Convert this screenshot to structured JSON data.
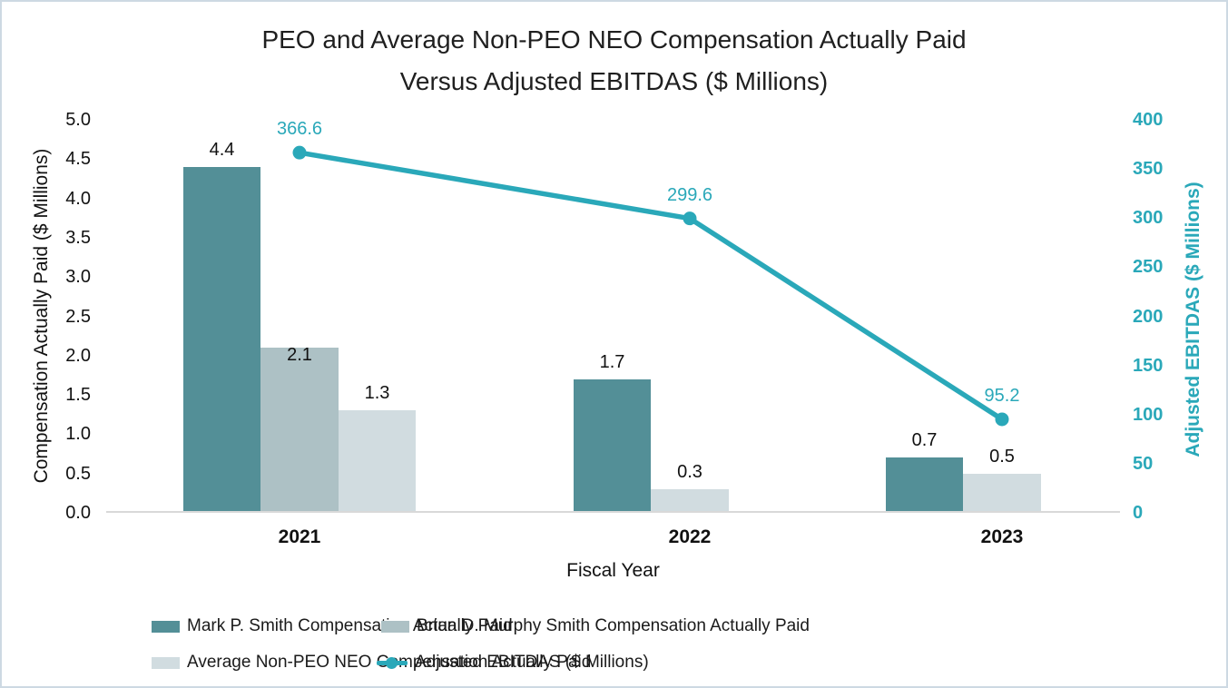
{
  "title": {
    "line1": "PEO and Average Non-PEO NEO Compensation Actually Paid",
    "line2": "Versus Adjusted EBITDAS ($ Millions)"
  },
  "colors": {
    "accent_teal": "#2aa8b9",
    "bar_dark_teal": "#538f97",
    "bar_gray_teal": "#adc1c5",
    "bar_light_gray": "#d1dce0",
    "axis_line": "#d9d9d9",
    "text": "#111111",
    "frame_border": "#cdd9e3"
  },
  "chart_data": {
    "type": "bar+line combo",
    "categories": [
      "2021",
      "2022",
      "2023"
    ],
    "bar_series": [
      {
        "name": "Mark P. Smith Compensation Actually Paid",
        "color_key": "bar_dark_teal",
        "values": [
          4.4,
          1.7,
          0.7
        ]
      },
      {
        "name": "Brian D. Murphy Smith Compensation Actually Paid",
        "color_key": "bar_gray_teal",
        "values": [
          2.1,
          null,
          null
        ],
        "value_label_inside": true
      },
      {
        "name": "Average Non-PEO NEO Compensation Actually Paid",
        "color_key": "bar_light_gray",
        "values": [
          1.3,
          0.3,
          0.5
        ]
      }
    ],
    "line_series": {
      "name": "Adjusted EBITDAS ($ Millions)",
      "color_key": "accent_teal",
      "values": [
        366.6,
        299.6,
        95.2
      ]
    },
    "left_axis": {
      "title": "Compensation Actually Paid ($ Millions)",
      "min": 0,
      "max": 5,
      "step": 0.5,
      "decimals": 1
    },
    "right_axis": {
      "title": "Adjusted EBITDAS ($ Millions)",
      "min": 0,
      "max": 400,
      "step": 50,
      "decimals": 0
    },
    "x_axis": {
      "title": "Fiscal Year"
    },
    "grid": false,
    "legend_position": "bottom",
    "legend_rows": 2
  }
}
